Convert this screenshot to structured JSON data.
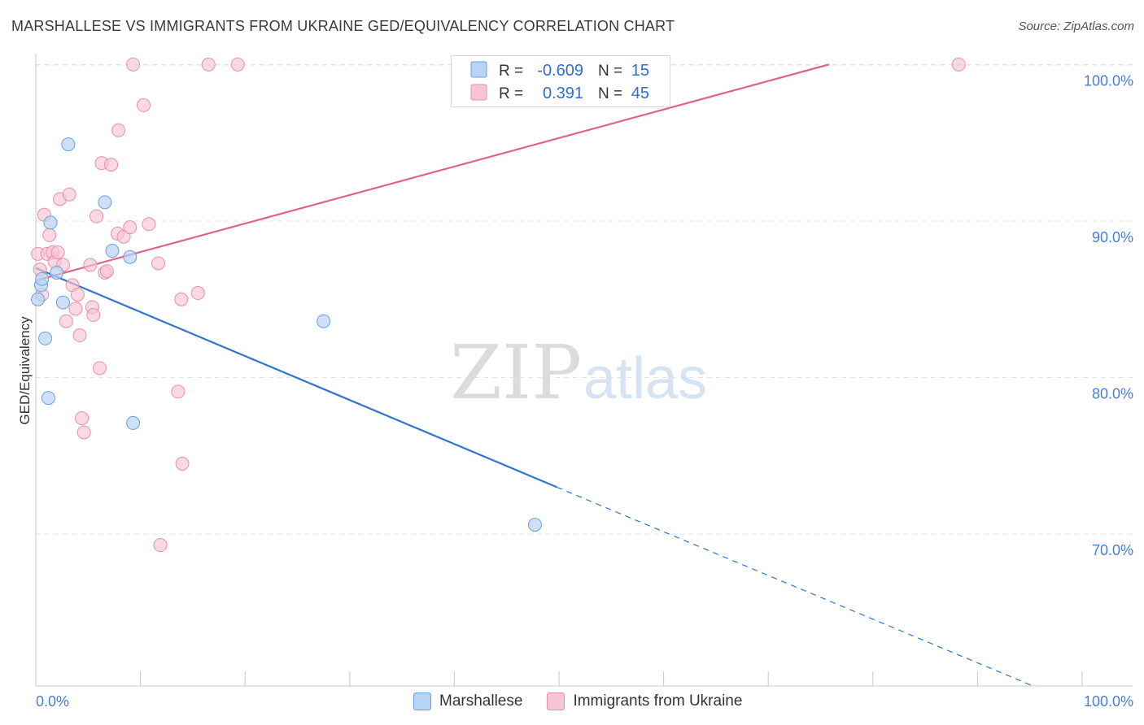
{
  "title": "MARSHALLESE VS IMMIGRANTS FROM UKRAINE GED/EQUIVALENCY CORRELATION CHART",
  "source": "Source: ZipAtlas.com",
  "watermark": {
    "zip": "ZIP",
    "atlas": "atlas"
  },
  "legend": {
    "rows": [
      {
        "r_label": "R =",
        "r_value": "-0.609",
        "n_label": "N =",
        "n_value": "15"
      },
      {
        "r_label": "R =",
        "r_value": "0.391",
        "n_label": "N =",
        "n_value": "45"
      }
    ]
  },
  "bottom_legend": [
    "Marshallese",
    "Immigrants from Ukraine"
  ],
  "colors": {
    "blue_fill": "#b8d3f3",
    "blue_stroke": "#6a9fe0",
    "blue_line": "#2f74d0",
    "pink_fill": "#f7c5d3",
    "pink_stroke": "#ea8fab",
    "pink_line": "#e0628b",
    "tick_text": "#4a7fd0",
    "grid": "#e3e3e3"
  },
  "chart_data": {
    "type": "scatter",
    "title": "MARSHALLESE VS IMMIGRANTS FROM UKRAINE GED/EQUIVALENCY CORRELATION CHART",
    "xlabel": "",
    "ylabel": "GED/Equivalency",
    "xlim": [
      0,
      100
    ],
    "ylim": [
      60.3,
      100.9
    ],
    "x_tick_labels": [
      "0.0%",
      "100.0%"
    ],
    "y_ticks": [
      70,
      80,
      90,
      100
    ],
    "y_tick_labels": [
      "70.0%",
      "80.0%",
      "90.0%",
      "100.0%"
    ],
    "grid": "horizontal dashed",
    "series": [
      {
        "name": "Marshallese",
        "points": [
          [
            0.2,
            85.0
          ],
          [
            0.5,
            85.9
          ],
          [
            0.6,
            86.3
          ],
          [
            0.9,
            82.5
          ],
          [
            1.2,
            78.7
          ],
          [
            1.4,
            89.9
          ],
          [
            2.0,
            86.7
          ],
          [
            2.6,
            84.8
          ],
          [
            3.1,
            94.9
          ],
          [
            6.6,
            91.2
          ],
          [
            7.3,
            88.1
          ],
          [
            9.0,
            87.7
          ],
          [
            9.3,
            77.1
          ],
          [
            27.5,
            83.6
          ],
          [
            47.7,
            70.6
          ]
        ],
        "trend": {
          "x0": 0,
          "y0": 87.0,
          "x1": 49.8,
          "y1": 73.0,
          "dashed_to": [
            95.3,
            60.3
          ]
        }
      },
      {
        "name": "Immigrants from Ukraine",
        "points": [
          [
            0.2,
            87.9
          ],
          [
            0.4,
            86.9
          ],
          [
            0.6,
            85.3
          ],
          [
            0.8,
            90.4
          ],
          [
            1.1,
            87.9
          ],
          [
            1.3,
            89.1
          ],
          [
            1.6,
            88.0
          ],
          [
            1.8,
            87.4
          ],
          [
            2.1,
            88.0
          ],
          [
            2.3,
            91.4
          ],
          [
            2.6,
            87.2
          ],
          [
            2.9,
            83.6
          ],
          [
            3.2,
            91.7
          ],
          [
            3.5,
            85.9
          ],
          [
            3.8,
            84.4
          ],
          [
            4.0,
            85.3
          ],
          [
            4.2,
            82.7
          ],
          [
            4.4,
            77.4
          ],
          [
            4.6,
            76.5
          ],
          [
            5.2,
            87.2
          ],
          [
            5.4,
            84.5
          ],
          [
            5.5,
            84.0
          ],
          [
            5.8,
            90.3
          ],
          [
            6.1,
            80.6
          ],
          [
            6.3,
            93.7
          ],
          [
            6.6,
            86.7
          ],
          [
            6.8,
            86.8
          ],
          [
            7.2,
            93.6
          ],
          [
            7.8,
            89.2
          ],
          [
            7.9,
            95.8
          ],
          [
            8.4,
            89.0
          ],
          [
            9.0,
            89.6
          ],
          [
            9.3,
            100.0
          ],
          [
            10.3,
            97.4
          ],
          [
            10.8,
            89.8
          ],
          [
            11.7,
            87.3
          ],
          [
            11.9,
            69.3
          ],
          [
            13.6,
            79.1
          ],
          [
            13.9,
            85.0
          ],
          [
            14.0,
            74.5
          ],
          [
            15.5,
            85.4
          ],
          [
            16.5,
            100.0
          ],
          [
            19.3,
            100.0
          ],
          [
            49.8,
            100.0
          ],
          [
            88.2,
            100.0
          ]
        ],
        "trend": {
          "x0": 0,
          "y0": 86.2,
          "x1": 75.8,
          "y1": 100.0
        }
      }
    ]
  }
}
